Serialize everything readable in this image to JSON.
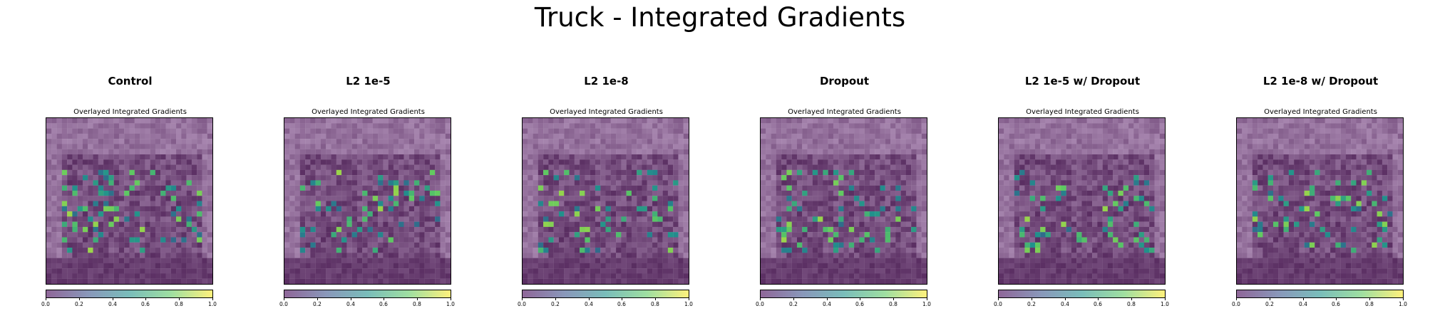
{
  "figure": {
    "suptitle": "Truck - Integrated Gradients"
  },
  "colors": {
    "background": "#ffffff",
    "colormap": "viridis",
    "colormap_stops": [
      "#440154",
      "#3b528b",
      "#21918c",
      "#5ec962",
      "#fde725"
    ],
    "overlay_alpha": 0.6
  },
  "panels": [
    {
      "title": "Control",
      "subtitle": "Overlayed Integrated Gradients"
    },
    {
      "title": "L2 1e-5",
      "subtitle": "Overlayed Integrated Gradients"
    },
    {
      "title": "L2 1e-8",
      "subtitle": "Overlayed Integrated Gradients"
    },
    {
      "title": "Dropout",
      "subtitle": "Overlayed Integrated Gradients"
    },
    {
      "title": "L2 1e-5 w/ Dropout",
      "subtitle": "Overlayed Integrated Gradients"
    },
    {
      "title": "L2 1e-8 w/ Dropout",
      "subtitle": "Overlayed Integrated Gradients"
    }
  ],
  "chart_data": {
    "type": "heatmap",
    "title": "Truck - Integrated Gradients",
    "image_grid": "32x32",
    "colorbar": {
      "colormap": "viridis",
      "range": [
        0.0,
        1.0
      ],
      "tick_labels": [
        "0.0",
        "0.2",
        "0.4",
        "0.6",
        "0.8",
        "1.0"
      ]
    },
    "subplots": [
      {
        "title": "Control",
        "subtitle": "Overlayed Integrated Gradients"
      },
      {
        "title": "L2 1e-5",
        "subtitle": "Overlayed Integrated Gradients"
      },
      {
        "title": "L2 1e-8",
        "subtitle": "Overlayed Integrated Gradients"
      },
      {
        "title": "Dropout",
        "subtitle": "Overlayed Integrated Gradients"
      },
      {
        "title": "L2 1e-5 w/ Dropout",
        "subtitle": "Overlayed Integrated Gradients"
      },
      {
        "title": "L2 1e-8 w/ Dropout",
        "subtitle": "Overlayed Integrated Gradients"
      }
    ]
  }
}
